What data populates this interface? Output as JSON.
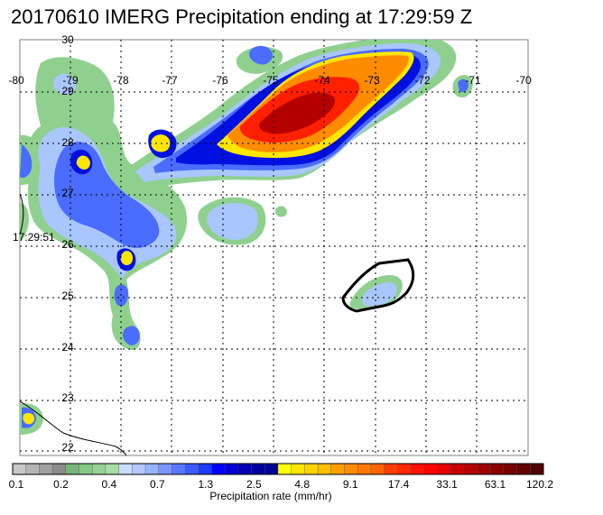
{
  "title": "20170610 IMERG Precipitation ending at 17:29:59 Z",
  "swath_time_label": "17:29:51",
  "lon_labels": [
    "-80",
    "-79",
    "-78",
    "-77",
    "-76",
    "-75",
    "-74",
    "-73",
    "-72",
    "-71",
    "-70"
  ],
  "lat_labels": [
    "30",
    "29",
    "28",
    "27",
    "26",
    "25",
    "24",
    "23",
    "22"
  ],
  "colorbar": {
    "label": "Precipitation rate (mm/hr)",
    "tick_labels": [
      "0.1",
      "0.2",
      "0.4",
      "0.7",
      "1.3",
      "2.5",
      "4.8",
      "9.1",
      "17.4",
      "33.1",
      "63.1",
      "120.2"
    ],
    "colors": [
      "#c8c8c8",
      "#b4b4b4",
      "#a0a0a0",
      "#8c8c8c",
      "#78b478",
      "#82c882",
      "#96d296",
      "#a8dca8",
      "#c8dcff",
      "#b4c8ff",
      "#96b4ff",
      "#7896ff",
      "#5a78ff",
      "#3c5aff",
      "#1e3cff",
      "#0000ff",
      "#0000d2",
      "#0000b4",
      "#0000a0",
      "#000096",
      "#ffff00",
      "#ffe600",
      "#ffd200",
      "#ffbe00",
      "#ffa000",
      "#ff8c00",
      "#ff7800",
      "#ff6400",
      "#ff3c00",
      "#ff2800",
      "#ff1400",
      "#ff0000",
      "#e60000",
      "#c80000",
      "#b40000",
      "#a00000",
      "#8c0000",
      "#780000",
      "#640000",
      "#500000"
    ]
  },
  "chart_data": {
    "type": "heatmap",
    "title": "20170610 IMERG Precipitation ending at 17:29:59 Z",
    "xlabel": "",
    "ylabel": "",
    "xlim": [
      -80,
      -70
    ],
    "ylim": [
      22,
      30
    ],
    "colorbar_label": "Precipitation rate (mm/hr)",
    "colorbar_ticks": [
      0.1,
      0.2,
      0.4,
      0.7,
      1.3,
      2.5,
      4.8,
      9.1,
      17.4,
      33.1,
      63.1,
      120.2
    ],
    "grid": true,
    "annotations": [
      "17:29:51"
    ]
  }
}
